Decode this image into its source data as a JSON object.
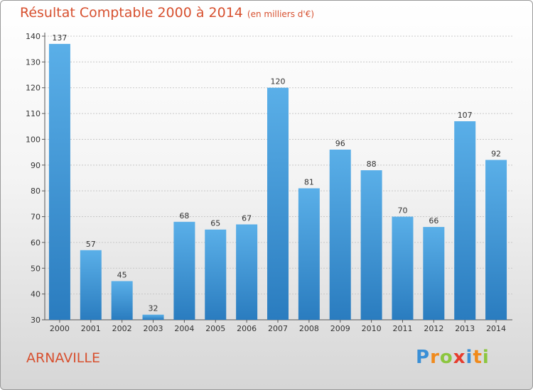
{
  "title": "Résultat Comptable 2000 à 2014",
  "subtitle": "(en milliers d'€)",
  "location": "ARNAVILLE",
  "logo": {
    "text": "Proxiti",
    "letters": [
      "P",
      "r",
      "o",
      "x",
      "i",
      "t",
      "i"
    ],
    "colors": [
      "#3a8fd6",
      "#f08a1c",
      "#8cc63f",
      "#e63c2e",
      "#3a8fd6",
      "#f08a1c",
      "#8cc63f"
    ]
  },
  "colors": {
    "bar_top": "#5aafe8",
    "bar_bottom": "#2a7cbf",
    "title": "#d7502f"
  },
  "chart_data": {
    "type": "bar",
    "title": "Résultat Comptable 2000 à 2014",
    "subtitle": "(en milliers d'€)",
    "categories": [
      "2000",
      "2001",
      "2002",
      "2003",
      "2004",
      "2005",
      "2006",
      "2007",
      "2008",
      "2009",
      "2010",
      "2011",
      "2012",
      "2013",
      "2014"
    ],
    "values": [
      137,
      57,
      45,
      32,
      68,
      65,
      67,
      120,
      81,
      96,
      88,
      70,
      66,
      107,
      92
    ],
    "ylim": [
      30,
      140
    ],
    "yticks": [
      30,
      40,
      50,
      60,
      70,
      80,
      90,
      100,
      110,
      120,
      130,
      140
    ],
    "grid": true,
    "data_labels": true
  }
}
